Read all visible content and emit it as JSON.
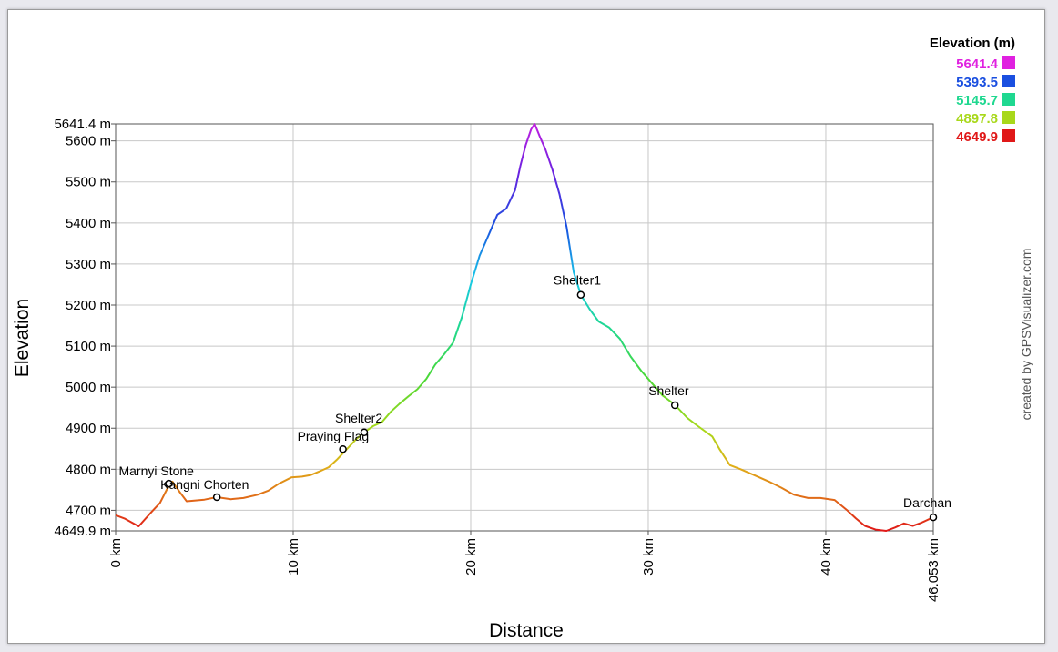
{
  "chart_data": {
    "type": "line",
    "xlabel": "Distance",
    "ylabel": "Elevation",
    "xlim": [
      0,
      46.053
    ],
    "ylim": [
      4649.9,
      5641.4
    ],
    "x_ticks": [
      {
        "value": 0,
        "label": "0 km"
      },
      {
        "value": 10,
        "label": "10 km"
      },
      {
        "value": 20,
        "label": "20 km"
      },
      {
        "value": 30,
        "label": "30 km"
      },
      {
        "value": 40,
        "label": "40 km"
      },
      {
        "value": 46.053,
        "label": "46.053 km"
      }
    ],
    "y_ticks": [
      {
        "value": 4649.9,
        "label": "4649.9 m"
      },
      {
        "value": 4700,
        "label": "4700 m"
      },
      {
        "value": 4800,
        "label": "4800 m"
      },
      {
        "value": 4900,
        "label": "4900 m"
      },
      {
        "value": 5000,
        "label": "5000 m"
      },
      {
        "value": 5100,
        "label": "5100 m"
      },
      {
        "value": 5200,
        "label": "5200 m"
      },
      {
        "value": 5300,
        "label": "5300 m"
      },
      {
        "value": 5400,
        "label": "5400 m"
      },
      {
        "value": 5500,
        "label": "5500 m"
      },
      {
        "value": 5600,
        "label": "5600 m"
      },
      {
        "value": 5641.4,
        "label": "5641.4 m"
      }
    ],
    "grid": true,
    "legend": {
      "title": "Elevation (m)",
      "placement": "top-right",
      "entries": [
        {
          "label": "5641.4",
          "color": "#e020e0"
        },
        {
          "label": "5393.5",
          "color": "#1a4fe0"
        },
        {
          "label": "5145.7",
          "color": "#1fd890"
        },
        {
          "label": "4897.8",
          "color": "#a8d81a"
        },
        {
          "label": "4649.9",
          "color": "#e01818"
        }
      ]
    },
    "series": [
      {
        "x": [
          0,
          0.5,
          1.3,
          2.0,
          2.5,
          2.9,
          3.2,
          3.6,
          4.0,
          4.5,
          5.0,
          5.7,
          6.5,
          7.2,
          8.0,
          8.6,
          9.2,
          9.9,
          10.5,
          11.0,
          11.5,
          12.0,
          12.5,
          13.0,
          13.5,
          14.0,
          14.5,
          15.0,
          15.5,
          16.0,
          16.5,
          17.0,
          17.5,
          18.0,
          18.5,
          19.0,
          19.5,
          20.0,
          20.5,
          21.0,
          21.5,
          22.0,
          22.5,
          22.8,
          23.1,
          23.4,
          23.6,
          23.9,
          24.2,
          24.6,
          25.0,
          25.4,
          25.8,
          26.2,
          26.7,
          27.2,
          27.8,
          28.4,
          29.0,
          29.6,
          30.2,
          30.8,
          31.5,
          32.2,
          32.8,
          33.6,
          34.0,
          34.6,
          35.2,
          36.0,
          36.8,
          37.5,
          38.2,
          39.0,
          39.7,
          40.5,
          41.2,
          41.7,
          42.2,
          42.8,
          43.4,
          43.9,
          44.4,
          44.9,
          45.4,
          45.8,
          46.053
        ],
        "y": [
          4688,
          4680,
          4661,
          4695,
          4718,
          4752,
          4770,
          4745,
          4722,
          4724,
          4726,
          4732,
          4727,
          4730,
          4738,
          4748,
          4765,
          4780,
          4782,
          4786,
          4795,
          4805,
          4825,
          4848,
          4871,
          4890,
          4905,
          4915,
          4940,
          4960,
          4978,
          4995,
          5020,
          5055,
          5080,
          5108,
          5170,
          5250,
          5320,
          5370,
          5420,
          5435,
          5480,
          5540,
          5590,
          5628,
          5641.4,
          5610,
          5580,
          5530,
          5470,
          5390,
          5280,
          5225,
          5190,
          5160,
          5145,
          5118,
          5075,
          5040,
          5010,
          4980,
          4957,
          4925,
          4905,
          4880,
          4850,
          4810,
          4800,
          4785,
          4770,
          4755,
          4738,
          4730,
          4730,
          4725,
          4700,
          4680,
          4662,
          4653,
          4649.9,
          4658,
          4668,
          4662,
          4670,
          4678,
          4683
        ]
      }
    ],
    "waypoints": [
      {
        "name": "Marnyi Stone",
        "x": 3.0,
        "y": 4765
      },
      {
        "name": "Kangni Chorten",
        "x": 5.7,
        "y": 4732
      },
      {
        "name": "Praying Flag",
        "x": 12.8,
        "y": 4849
      },
      {
        "name": "Shelter2",
        "x": 14.0,
        "y": 4890
      },
      {
        "name": "Shelter1",
        "x": 26.2,
        "y": 5225
      },
      {
        "name": "Shelter",
        "x": 31.5,
        "y": 4956
      },
      {
        "name": "Darchan",
        "x": 46.053,
        "y": 4683
      }
    ],
    "credit": "created by GPSVisualizer.com"
  }
}
